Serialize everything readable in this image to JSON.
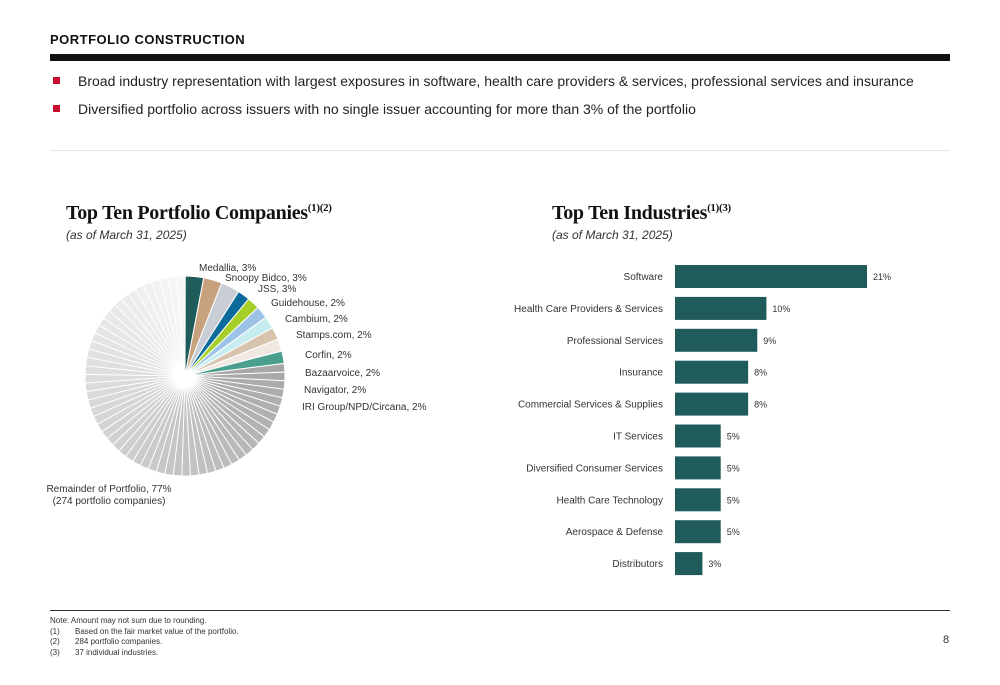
{
  "header": {
    "title": "PORTFOLIO CONSTRUCTION"
  },
  "bullets": [
    "Broad industry representation with largest exposures in software, health care providers & services, professional services and insurance",
    "Diversified portfolio across issuers with no single issuer accounting for more than 3% of the portfolio"
  ],
  "pie_section": {
    "title": "Top Ten Portfolio Companies",
    "title_sup": "(1)(2)",
    "subtitle": "(as of March 31, 2025)"
  },
  "bar_section": {
    "title": "Top Ten Industries",
    "title_sup": "(1)(3)",
    "subtitle": "(as of March 31, 2025)"
  },
  "chart_data": [
    {
      "type": "pie",
      "slices": [
        {
          "label": "Medallia, 3%",
          "value": 3,
          "color": "#1e5b5a"
        },
        {
          "label": "Snoopy Bidco, 3%",
          "value": 3,
          "color": "#c8a27f"
        },
        {
          "label": "JSS, 3%",
          "value": 3,
          "color": "#c8cdd6"
        },
        {
          "label": "Guidehouse, 2%",
          "value": 2,
          "color": "#0b6b9a"
        },
        {
          "label": "Cambium, 2%",
          "value": 2,
          "color": "#a6cf2a"
        },
        {
          "label": "Stamps.com, 2%",
          "value": 2,
          "color": "#9cc3e6"
        },
        {
          "label": "Corfin, 2%",
          "value": 2,
          "color": "#c6ecef"
        },
        {
          "label": "Bazaarvoice, 2%",
          "value": 2,
          "color": "#d8c3ac"
        },
        {
          "label": "Navigator, 2%",
          "value": 2,
          "color": "#efe9e1"
        },
        {
          "label": "IRI Group/NPD/Circana, 2%",
          "value": 2,
          "color": "#4aa08d"
        }
      ],
      "remainder": {
        "label": "Remainder of Portfolio, 77%",
        "sublabel": "(274 portfolio companies)",
        "value": 77
      }
    },
    {
      "type": "bar",
      "orientation": "horizontal",
      "categories": [
        "Software",
        "Health Care Providers & Services",
        "Professional Services",
        "Insurance",
        "Commercial Services & Supplies",
        "IT Services",
        "Diversified Consumer Services",
        "Health Care Technology",
        "Aerospace & Defense",
        "Distributors"
      ],
      "values": [
        21,
        10,
        9,
        8,
        8,
        5,
        5,
        5,
        5,
        3
      ],
      "value_labels": [
        "21%",
        "10%",
        "9%",
        "8%",
        "8%",
        "5%",
        "5%",
        "5%",
        "5%",
        "3%"
      ],
      "bar_color": "#1e5b5a"
    }
  ],
  "footnotes": {
    "note": "Note: Amount may not sum due to rounding.",
    "items": [
      {
        "num": "(1)",
        "text": "Based on the fair market value of the portfolio."
      },
      {
        "num": "(2)",
        "text": "284 portfolio companies."
      },
      {
        "num": "(3)",
        "text": "37 individual industries."
      }
    ]
  },
  "page_number": "8"
}
